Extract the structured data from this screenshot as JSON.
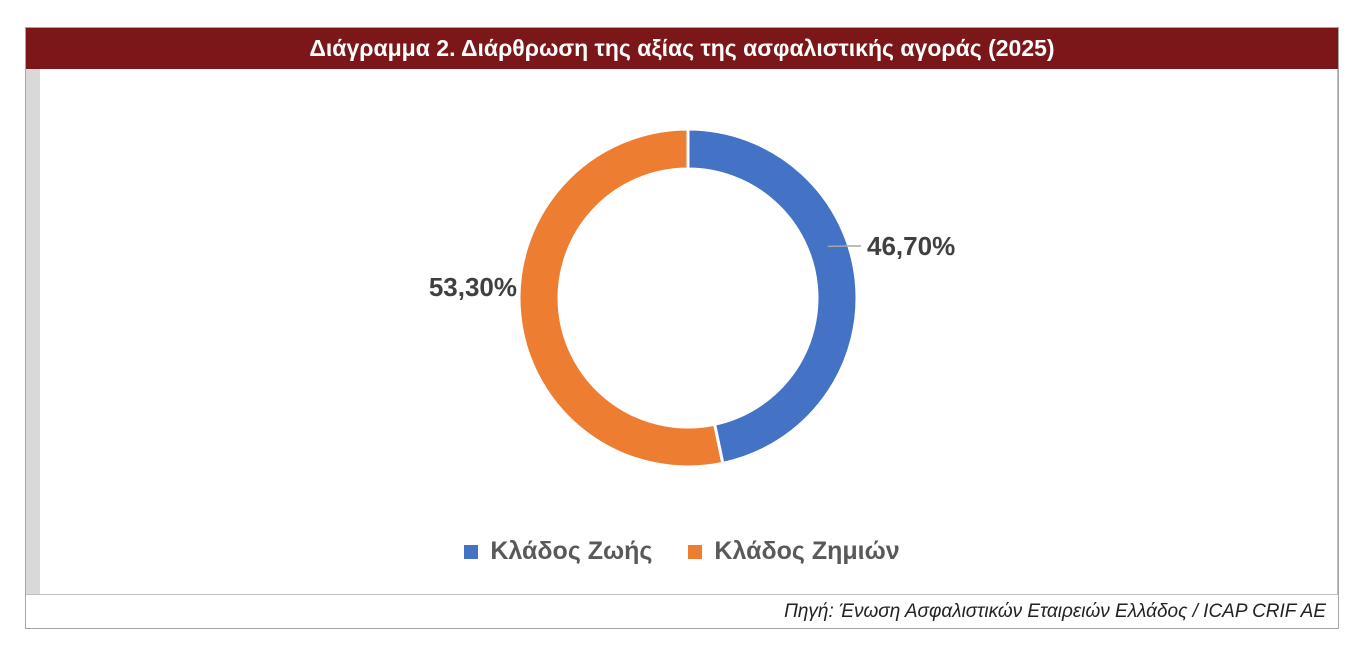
{
  "title": "Διάγραμμα 2.  Διάρθρωση της αξίας της ασφαλιστικής αγοράς (2025)",
  "source": "Πηγή: Ένωση Ασφαλιστικών Εταιρειών Ελλάδος / ICAP CRIF AE",
  "colors": {
    "title_bg": "#7b1719",
    "life": "#4472c4",
    "nonlife": "#ed7d31"
  },
  "chart_data": {
    "type": "pie",
    "variant": "doughnut",
    "categories": [
      "Κλάδος Ζωής",
      "Κλάδος Ζημιών"
    ],
    "values": [
      46.7,
      53.3
    ],
    "labels": [
      "46,70%",
      "53,30%"
    ],
    "colors": [
      "#4472c4",
      "#ed7d31"
    ],
    "legend_position": "bottom"
  }
}
